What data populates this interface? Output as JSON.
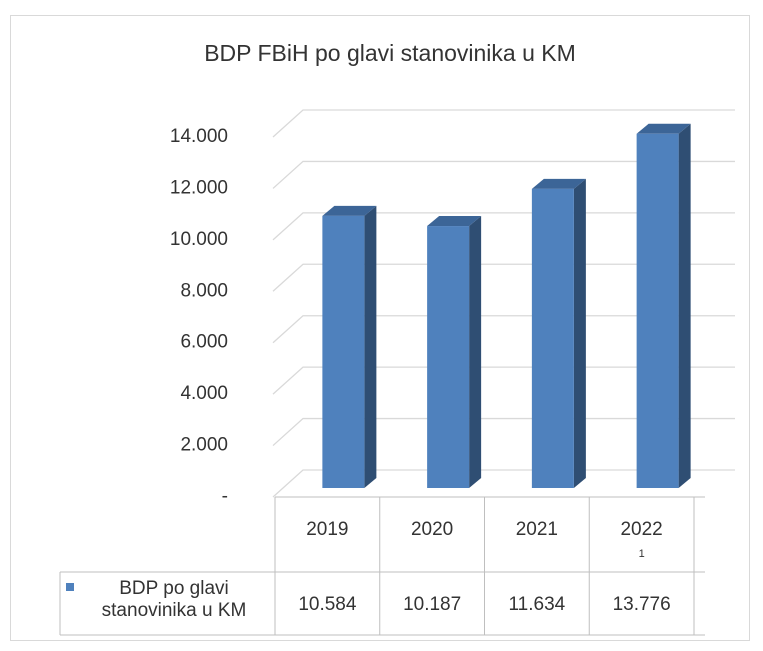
{
  "chart_data": {
    "type": "bar3d",
    "title": "BDP FBiH po glavi stanovinika u KM",
    "categories": [
      "2019",
      "2020",
      "2021",
      "2022"
    ],
    "category_footnotes": [
      null,
      null,
      null,
      "1"
    ],
    "series": [
      {
        "name": "BDP po glavi stanovinika u KM",
        "color": "#4f81bd",
        "values": [
          10584,
          10187,
          11634,
          13776
        ],
        "value_labels": [
          "10.584",
          "10.187",
          "11.634",
          "13.776"
        ]
      }
    ],
    "ylim": [
      0,
      14000
    ],
    "yticks": [
      {
        "value": 0,
        "label": "-"
      },
      {
        "value": 2000,
        "label": "2.000"
      },
      {
        "value": 4000,
        "label": "4.000"
      },
      {
        "value": 6000,
        "label": "6.000"
      },
      {
        "value": 8000,
        "label": "8.000"
      },
      {
        "value": 10000,
        "label": "10.000"
      },
      {
        "value": 12000,
        "label": "12.000"
      },
      {
        "value": 14000,
        "label": "14.000"
      }
    ],
    "grid": true,
    "data_table": true
  }
}
